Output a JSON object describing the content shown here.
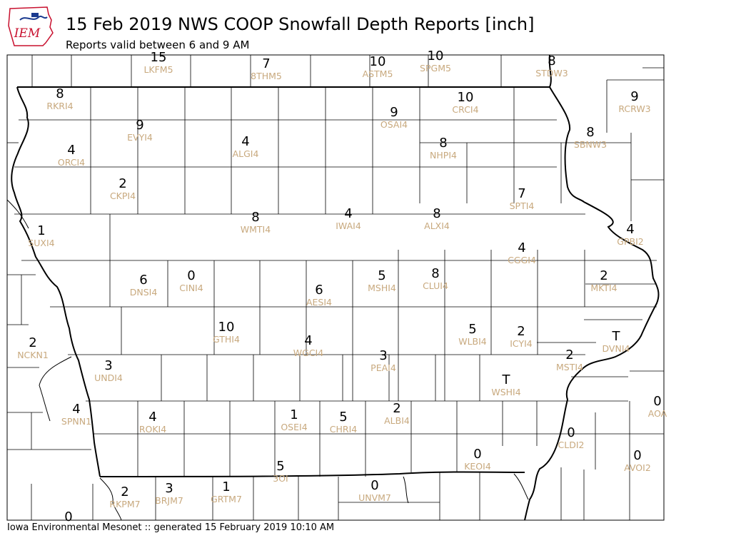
{
  "header": {
    "title": "15 Feb 2019 NWS COOP Snowfall Depth Reports [inch]",
    "subtitle": "Reports valid between 6 and 9 AM",
    "logo_text": "IEM"
  },
  "footer": "Iowa Environmental Mesonet :: generated 15 February 2019 10:10 AM",
  "colors": {
    "station_label": "#c8a97e",
    "value_text": "#000000",
    "boundary": "#000000",
    "logo_red": "#c8102e",
    "logo_blue": "#1a3a8f"
  },
  "reports": [
    {
      "id": "LKFM5",
      "value": "15"
    },
    {
      "id": "8THM5",
      "value": "7"
    },
    {
      "id": "ASTM5",
      "value": "10"
    },
    {
      "id": "SPGM5",
      "value": "10"
    },
    {
      "id": "STDW3",
      "value": "8"
    },
    {
      "id": "RKRI4",
      "value": "8"
    },
    {
      "id": "OSAI4",
      "value": "9"
    },
    {
      "id": "CRCI4",
      "value": "10"
    },
    {
      "id": "RCRW3",
      "value": "9"
    },
    {
      "id": "EVYI4",
      "value": "9"
    },
    {
      "id": "SBNW3",
      "value": "8"
    },
    {
      "id": "ORCI4",
      "value": "4"
    },
    {
      "id": "ALGI4",
      "value": "4"
    },
    {
      "id": "NHPI4",
      "value": "8"
    },
    {
      "id": "CKPI4",
      "value": "2"
    },
    {
      "id": "SPTI4",
      "value": "7"
    },
    {
      "id": "WMTI4",
      "value": "8"
    },
    {
      "id": "IWAI4",
      "value": "4"
    },
    {
      "id": "ALXI4",
      "value": "8"
    },
    {
      "id": "SUXI4",
      "value": "1"
    },
    {
      "id": "GPBI2",
      "value": "4"
    },
    {
      "id": "CGGI4",
      "value": "4"
    },
    {
      "id": "DNSI4",
      "value": "6"
    },
    {
      "id": "CINI4",
      "value": "0"
    },
    {
      "id": "MSHI4",
      "value": "5"
    },
    {
      "id": "CLUI4",
      "value": "8"
    },
    {
      "id": "MKTI4",
      "value": "2"
    },
    {
      "id": "AESI4",
      "value": "6"
    },
    {
      "id": "GTHI4",
      "value": "10"
    },
    {
      "id": "WLBI4",
      "value": "5"
    },
    {
      "id": "ICYI4",
      "value": "2"
    },
    {
      "id": "DVNI4",
      "value": "T"
    },
    {
      "id": "NCKN1",
      "value": "2"
    },
    {
      "id": "WGCI4",
      "value": "4"
    },
    {
      "id": "PEAI4",
      "value": "3"
    },
    {
      "id": "MSTI4",
      "value": "2"
    },
    {
      "id": "UNDI4",
      "value": "3"
    },
    {
      "id": "WSHI4",
      "value": "T"
    },
    {
      "id": "SPNN1",
      "value": "4"
    },
    {
      "id": "ROKI4",
      "value": "4"
    },
    {
      "id": "OSEI4",
      "value": "1"
    },
    {
      "id": "CHRI4",
      "value": "5"
    },
    {
      "id": "ALBI4",
      "value": "2"
    },
    {
      "id": "AOA",
      "value": "0"
    },
    {
      "id": "CLDI2",
      "value": "0"
    },
    {
      "id": "KEOI4",
      "value": "0"
    },
    {
      "id": "AVOI2",
      "value": "0"
    },
    {
      "id": "3OI",
      "value": "5"
    },
    {
      "id": "BRJM7",
      "value": "3"
    },
    {
      "id": "GRTM7",
      "value": "1"
    },
    {
      "id": "UNVM7",
      "value": "0"
    },
    {
      "id": "RKPM7",
      "value": "2"
    },
    {
      "id": "",
      "value": "0"
    }
  ]
}
